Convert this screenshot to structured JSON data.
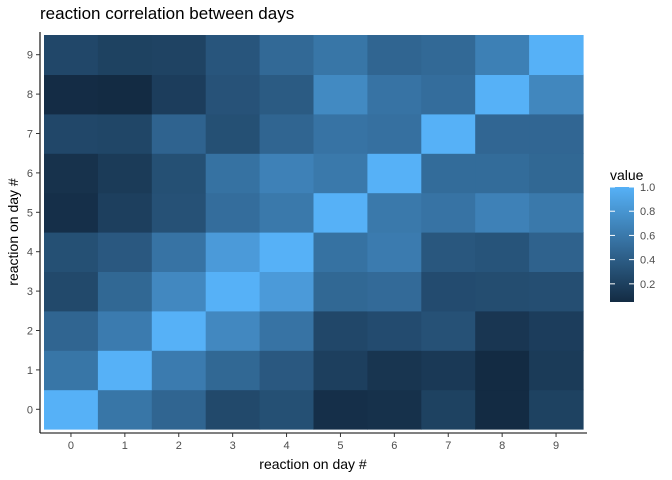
{
  "chart_data": {
    "type": "heatmap",
    "title": "reaction correlation between days",
    "xlabel": "reaction on day #",
    "ylabel": "reaction on day #",
    "x": [
      0,
      1,
      2,
      3,
      4,
      5,
      6,
      7,
      8,
      9
    ],
    "y": [
      0,
      1,
      2,
      3,
      4,
      5,
      6,
      7,
      8,
      9
    ],
    "values": [
      [
        1.0,
        0.58,
        0.46,
        0.26,
        0.31,
        0.08,
        0.09,
        0.21,
        0.05,
        0.21
      ],
      [
        0.58,
        1.0,
        0.62,
        0.48,
        0.37,
        0.19,
        0.12,
        0.15,
        0.05,
        0.16
      ],
      [
        0.46,
        0.62,
        1.0,
        0.71,
        0.56,
        0.25,
        0.28,
        0.32,
        0.13,
        0.18
      ],
      [
        0.26,
        0.48,
        0.71,
        1.0,
        0.84,
        0.48,
        0.5,
        0.28,
        0.29,
        0.3
      ],
      [
        0.31,
        0.37,
        0.56,
        0.84,
        1.0,
        0.55,
        0.62,
        0.36,
        0.34,
        0.44
      ],
      [
        0.08,
        0.19,
        0.32,
        0.52,
        0.6,
        1.0,
        0.6,
        0.56,
        0.66,
        0.6
      ],
      [
        0.1,
        0.16,
        0.31,
        0.55,
        0.66,
        0.6,
        1.0,
        0.51,
        0.51,
        0.48
      ],
      [
        0.25,
        0.24,
        0.45,
        0.31,
        0.46,
        0.56,
        0.54,
        1.0,
        0.47,
        0.47
      ],
      [
        0.06,
        0.05,
        0.18,
        0.33,
        0.39,
        0.72,
        0.56,
        0.52,
        1.0,
        0.7
      ],
      [
        0.25,
        0.21,
        0.22,
        0.35,
        0.49,
        0.58,
        0.46,
        0.49,
        0.65,
        1.0
      ]
    ],
    "legend": {
      "title": "value",
      "ticks": [
        0.2,
        0.4,
        0.6,
        0.8,
        1.0
      ],
      "tick_labels": [
        "0.2",
        "0.4",
        "0.6",
        "0.8",
        "1.0"
      ],
      "placement": "right"
    },
    "color_low": "#132B43",
    "color_high": "#56B1F7",
    "value_range": [
      0.05,
      1.0
    ],
    "grid": false
  }
}
